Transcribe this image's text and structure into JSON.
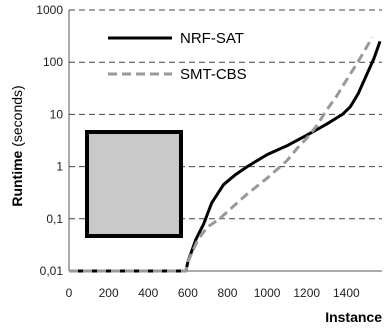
{
  "chart_data": {
    "type": "line",
    "xlabel": "Instance",
    "ylabel_bold": "Runtime",
    "ylabel_rest": "(seconds)",
    "xlim": [
      0,
      1580
    ],
    "ylim": [
      0.01,
      1000
    ],
    "yscale": "log",
    "xticks": [
      "0",
      "200",
      "400",
      "600",
      "800",
      "1000",
      "1200",
      "1400"
    ],
    "yticks": [
      "0,01",
      "0,1",
      "1",
      "10",
      "100",
      "1000"
    ],
    "grid": "horizontal dashed",
    "legend": "top-left",
    "series": [
      {
        "name": "NRF-SAT",
        "color": "#000000",
        "style": "solid",
        "x": [
          0,
          590,
          600,
          640,
          680,
          720,
          780,
          840,
          900,
          1000,
          1100,
          1200,
          1300,
          1380,
          1420,
          1460,
          1500,
          1540,
          1570
        ],
        "y": [
          0.01,
          0.01,
          0.015,
          0.04,
          0.08,
          0.2,
          0.45,
          0.7,
          1.0,
          1.7,
          2.5,
          4.0,
          6.5,
          10.0,
          14.0,
          25.0,
          55.0,
          120.0,
          250.0
        ]
      },
      {
        "name": "SMT-CBS",
        "color": "#999999",
        "style": "dashed",
        "x": [
          0,
          590,
          600,
          650,
          700,
          760,
          820,
          900,
          1000,
          1100,
          1150,
          1200,
          1250,
          1300,
          1350,
          1400,
          1450,
          1490,
          1530
        ],
        "y": [
          0.01,
          0.01,
          0.015,
          0.04,
          0.07,
          0.1,
          0.16,
          0.3,
          0.6,
          1.3,
          2.2,
          3.5,
          6.0,
          12.0,
          22.0,
          45.0,
          90.0,
          160.0,
          300.0
        ]
      }
    ]
  }
}
